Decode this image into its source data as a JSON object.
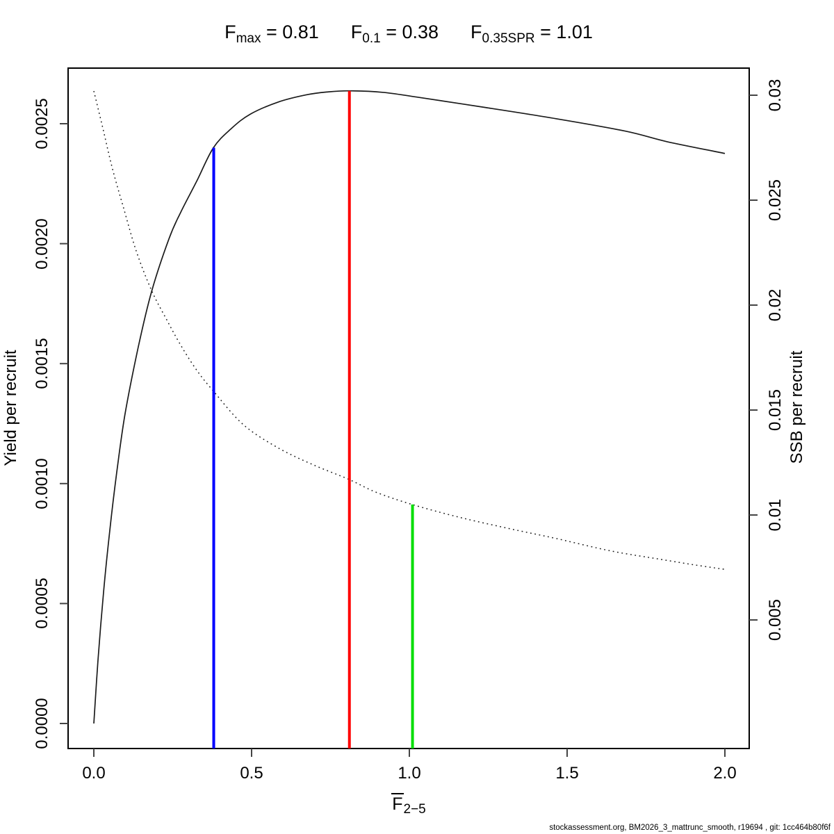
{
  "title": {
    "parts": [
      {
        "base": "F",
        "sub": "max",
        "eq": " = 0.81"
      },
      {
        "base": "F",
        "sub": "0.1",
        "eq": " = 0.38"
      },
      {
        "base": "F",
        "sub": "0.35SPR",
        "eq": " = 1.01"
      }
    ]
  },
  "axes": {
    "x": {
      "label_base": "F",
      "label_sub": "2−5",
      "ticks": [
        "0.0",
        "0.5",
        "1.0",
        "1.5",
        "2.0"
      ]
    },
    "y_left": {
      "label": "Yield per recruit",
      "ticks": [
        "0.0000",
        "0.0005",
        "0.0010",
        "0.0015",
        "0.0020",
        "0.0025"
      ]
    },
    "y_right": {
      "label": "SSB per recruit",
      "ticks": [
        "0.005",
        "0.01",
        "0.015",
        "0.02",
        "0.025",
        "0.03"
      ]
    }
  },
  "caption": "stockassessment.org, BM2026_3_mattrunc_smooth, r19694 , git: 1cc464b80f6f",
  "colors": {
    "curve": "#1a1a1a",
    "f01_line": "#0000FF",
    "fmax_line": "#FF0000",
    "f035spr_line": "#00DE00"
  },
  "chart_data": {
    "type": "line",
    "title": "Fmax = 0.81  F0.1 = 0.38  F0.35SPR = 1.01",
    "xlabel": "F̄2−5",
    "ylabel_left": "Yield per recruit",
    "ylabel_right": "SSB per recruit",
    "xlim": [
      0,
      2
    ],
    "ylim_left": [
      0,
      0.0025
    ],
    "ylim_right": [
      0.005,
      0.03
    ],
    "grid": false,
    "series": [
      {
        "name": "Yield per recruit",
        "axis": "left",
        "style": "solid",
        "x": [
          0,
          0.013,
          0.031,
          0.051,
          0.073,
          0.099,
          0.141,
          0.183,
          0.238,
          0.275,
          0.326,
          0.379,
          0.436,
          0.496,
          0.584,
          0.672,
          0.738,
          0.808,
          0.914,
          1.024,
          1.244,
          1.465,
          1.685,
          1.817,
          2.0
        ],
        "y": [
          0,
          0.00026,
          0.00055,
          0.00081,
          0.00105,
          0.00129,
          0.00157,
          0.0018,
          0.00202,
          0.00213,
          0.00226,
          0.0024,
          0.00248,
          0.00254,
          0.00259,
          0.00262,
          0.002632,
          0.002637,
          0.002631,
          0.002611,
          0.002567,
          0.002521,
          0.002469,
          0.002425,
          0.002376
        ]
      },
      {
        "name": "SSB per recruit",
        "axis": "right",
        "style": "dotted",
        "x": [
          0,
          0.029,
          0.059,
          0.093,
          0.134,
          0.183,
          0.231,
          0.275,
          0.326,
          0.379,
          0.474,
          0.584,
          0.694,
          0.808,
          0.892,
          1.009,
          1.156,
          1.311,
          1.465,
          1.641,
          1.795,
          1.905,
          2.0
        ],
        "y": [
          0.0302,
          0.0284,
          0.0265,
          0.0247,
          0.0226,
          0.0207,
          0.0193,
          0.0181,
          0.0169,
          0.0159,
          0.0143,
          0.0132,
          0.0124,
          0.0117,
          0.0111,
          0.0105,
          0.0099,
          0.00937,
          0.00888,
          0.00828,
          0.00789,
          0.00762,
          0.00741
        ]
      }
    ],
    "reference_lines": [
      {
        "name": "F_0.1",
        "x": 0.38,
        "top_value": 0.0024,
        "top_axis": "left",
        "color": "#0000FF"
      },
      {
        "name": "F_max",
        "x": 0.81,
        "top_value": 0.002637,
        "top_axis": "left",
        "color": "#FF0000"
      },
      {
        "name": "F_0.35SPR",
        "x": 1.01,
        "top_value": 0.0105,
        "top_axis": "right",
        "color": "#00DE00"
      }
    ]
  }
}
